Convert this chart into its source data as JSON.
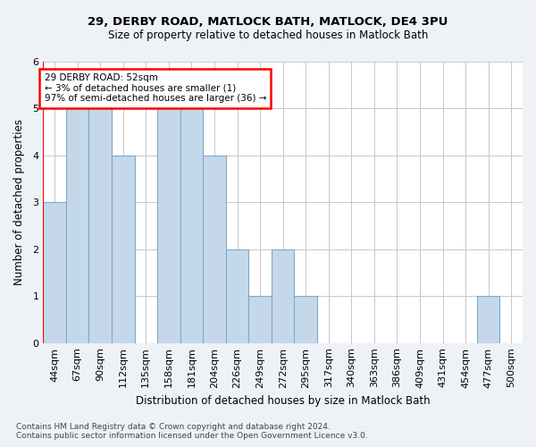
{
  "title1": "29, DERBY ROAD, MATLOCK BATH, MATLOCK, DE4 3PU",
  "title2": "Size of property relative to detached houses in Matlock Bath",
  "xlabel": "Distribution of detached houses by size in Matlock Bath",
  "ylabel": "Number of detached properties",
  "footnote": "Contains HM Land Registry data © Crown copyright and database right 2024.\nContains public sector information licensed under the Open Government Licence v3.0.",
  "categories": [
    "44sqm",
    "67sqm",
    "90sqm",
    "112sqm",
    "135sqm",
    "158sqm",
    "181sqm",
    "204sqm",
    "226sqm",
    "249sqm",
    "272sqm",
    "295sqm",
    "317sqm",
    "340sqm",
    "363sqm",
    "386sqm",
    "409sqm",
    "431sqm",
    "454sqm",
    "477sqm",
    "500sqm"
  ],
  "values": [
    3,
    5,
    5,
    4,
    0,
    5,
    5,
    4,
    2,
    1,
    2,
    1,
    0,
    0,
    0,
    0,
    0,
    0,
    0,
    1,
    0
  ],
  "bar_color": "#c5d8ea",
  "bar_edge_color": "#7aaac8",
  "annotation_text": "29 DERBY ROAD: 52sqm\n← 3% of detached houses are smaller (1)\n97% of semi-detached houses are larger (36) →",
  "annotation_box_color": "white",
  "annotation_box_edge_color": "red",
  "ylim": [
    0,
    6
  ],
  "background_color": "#eef2f7",
  "plot_bg_color": "white",
  "grid_color": "#c8c8c8",
  "title_fontsize": 9.5,
  "subtitle_fontsize": 8.5,
  "axis_label_fontsize": 8.5,
  "tick_fontsize": 8,
  "annot_fontsize": 7.5,
  "footnote_fontsize": 6.5
}
